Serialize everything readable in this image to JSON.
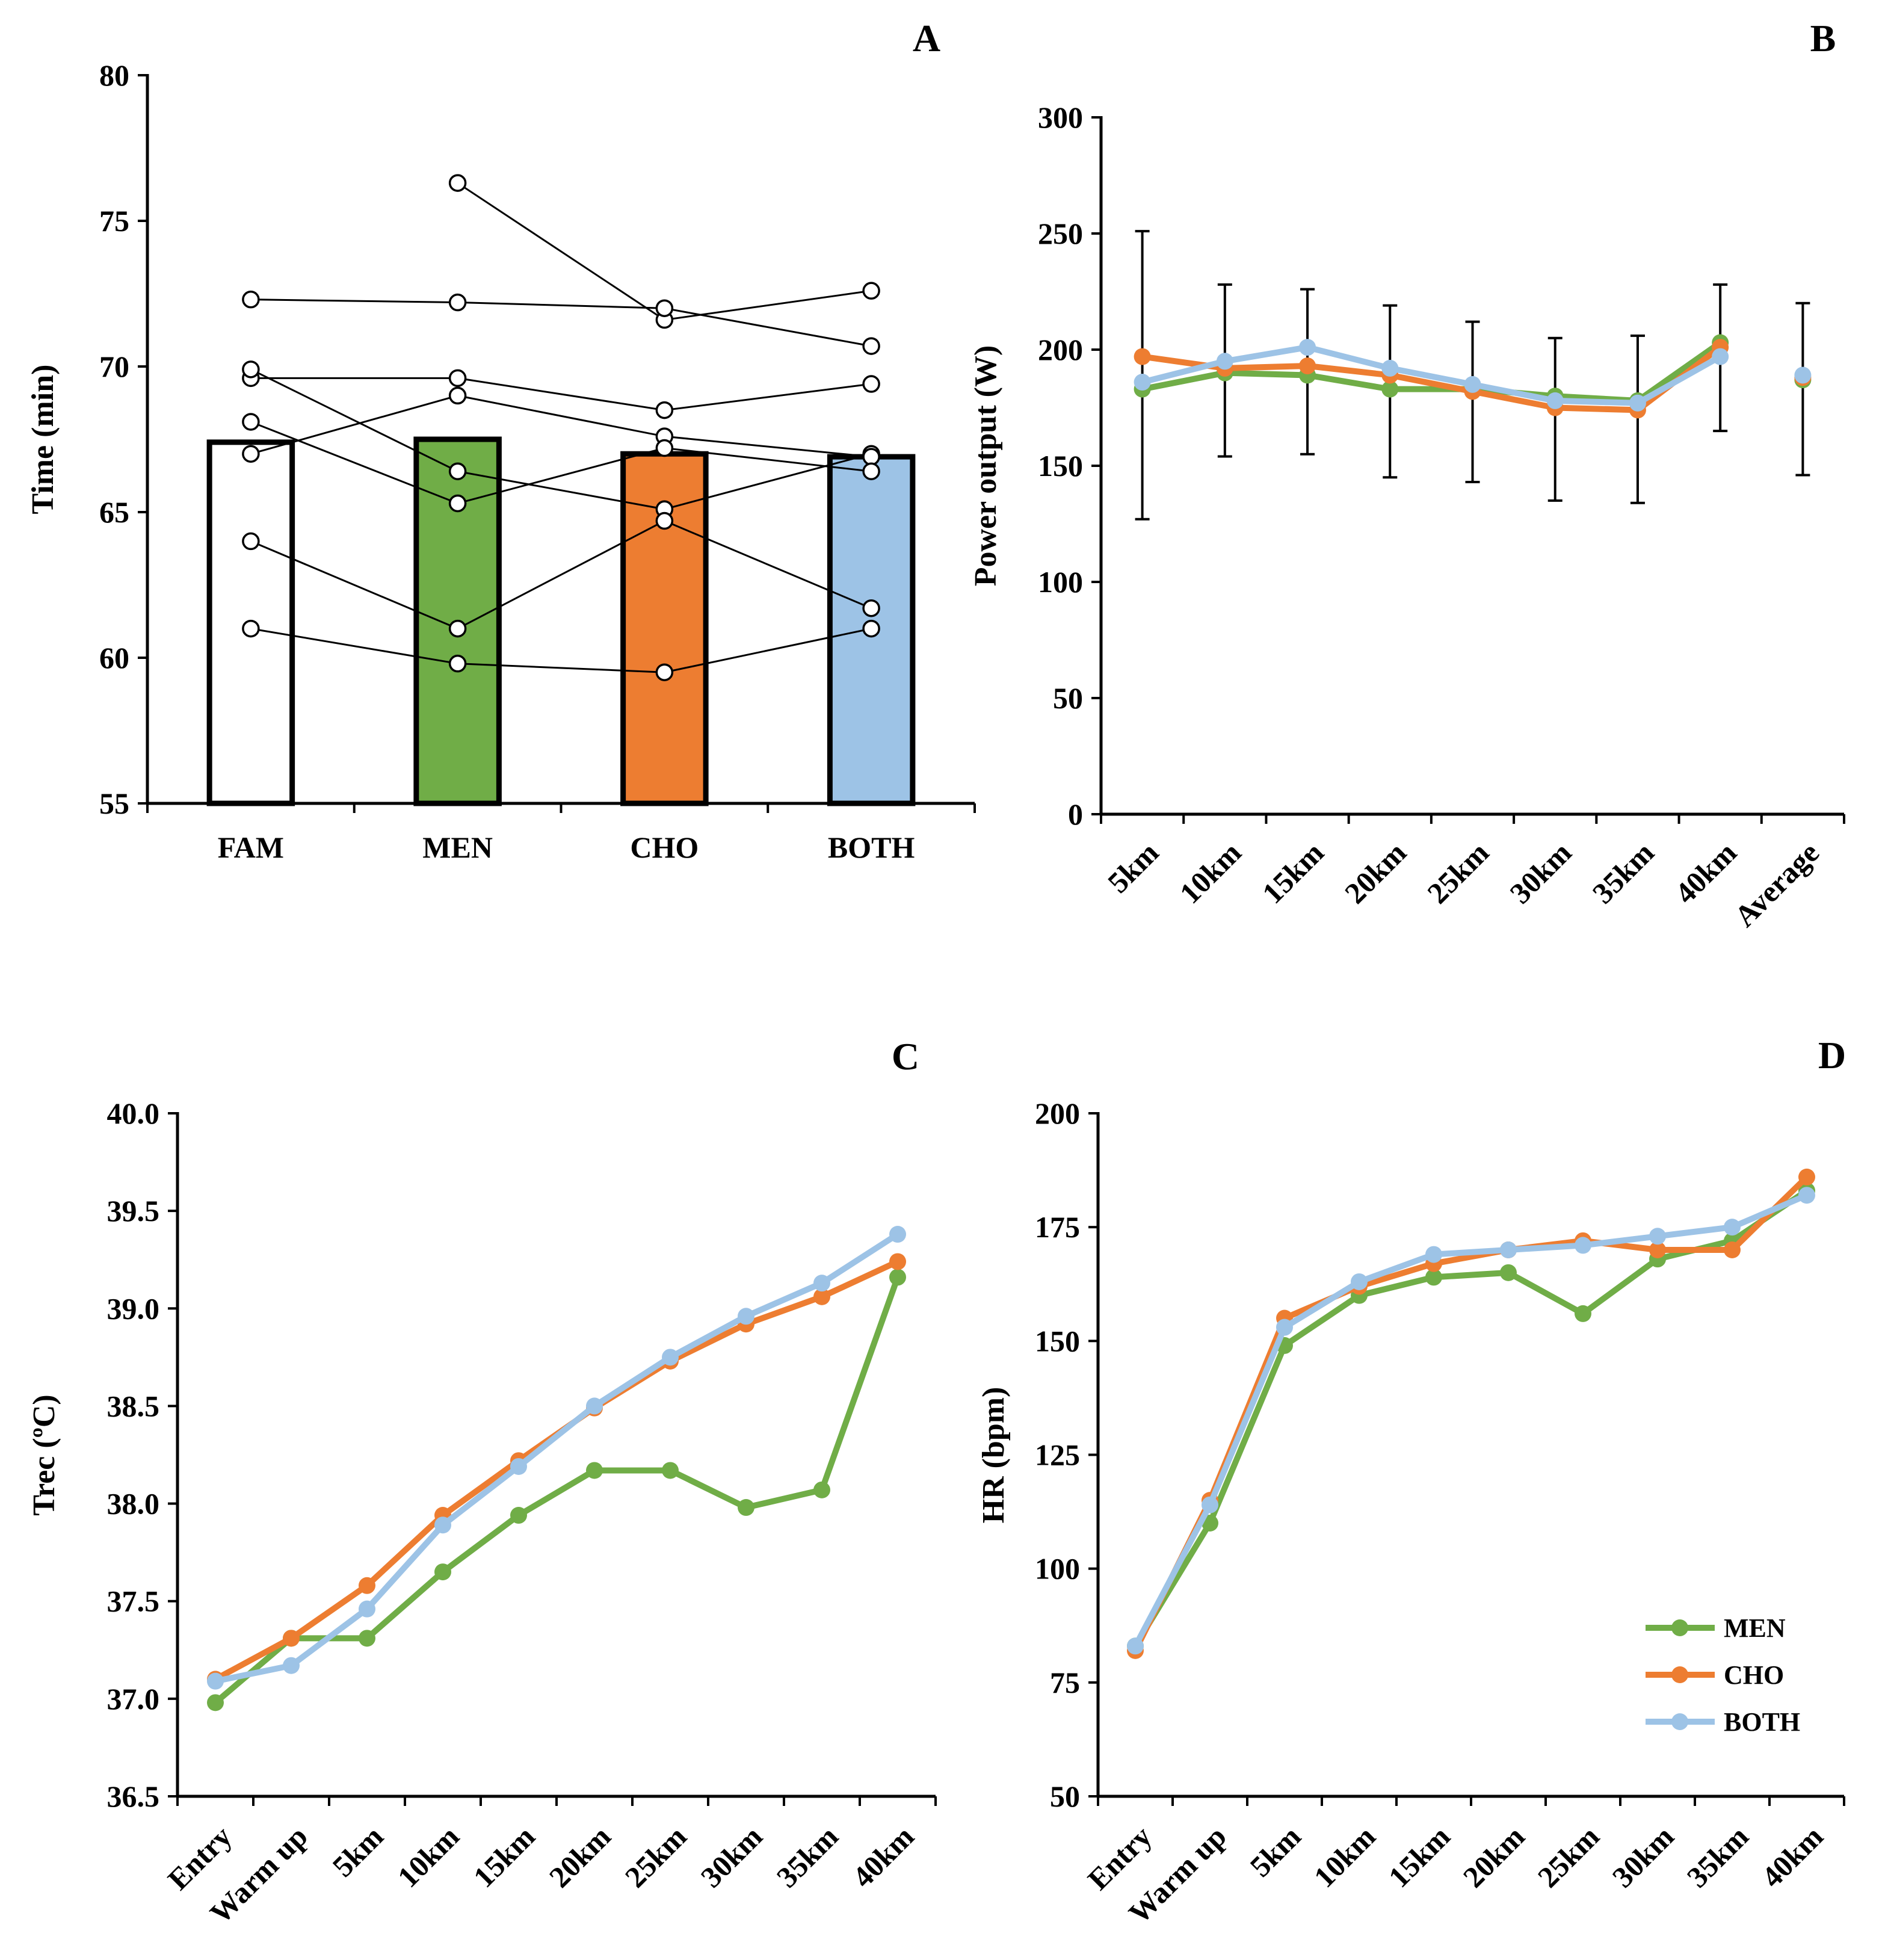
{
  "colors": {
    "MEN": "#70AD47",
    "CHO": "#ED7D31",
    "BOTH": "#9DC3E6",
    "FAM": "#FFFFFF",
    "axis": "#000000"
  },
  "chart_data": [
    {
      "id": "A",
      "panel_label": "A",
      "type": "bar",
      "title": "",
      "xlabel": "",
      "ylabel": "Time (min)",
      "ylim": [
        55,
        80
      ],
      "yticks": [
        55,
        60,
        65,
        70,
        75,
        80
      ],
      "categories": [
        "FAM",
        "MEN",
        "CHO",
        "BOTH"
      ],
      "values": [
        67.4,
        67.5,
        67.0,
        66.9
      ],
      "bar_colors": [
        "#FFFFFF",
        "#70AD47",
        "#ED7D31",
        "#9DC3E6"
      ],
      "individuals": [
        [
          null,
          76.3,
          71.6,
          72.6
        ],
        [
          72.3,
          72.2,
          72.0,
          70.7
        ],
        [
          69.6,
          69.6,
          68.5,
          69.4
        ],
        [
          69.9,
          66.4,
          65.1,
          67.0
        ],
        [
          67.0,
          69.0,
          67.6,
          66.9
        ],
        [
          68.1,
          65.3,
          67.2,
          66.4
        ],
        [
          64.0,
          61.0,
          64.7,
          61.7
        ],
        [
          61.0,
          59.8,
          59.5,
          61.0
        ]
      ]
    },
    {
      "id": "B",
      "panel_label": "B",
      "type": "line",
      "title": "",
      "xlabel": "",
      "ylabel": "Power output (W)",
      "ylim": [
        0,
        300
      ],
      "yticks": [
        0,
        50,
        100,
        150,
        200,
        250,
        300
      ],
      "categories": [
        "5km",
        "10km",
        "15km",
        "20km",
        "25km",
        "30km",
        "35km",
        "40km",
        "Average"
      ],
      "series": [
        {
          "name": "MEN",
          "values": [
            183,
            190,
            189,
            183,
            183,
            180,
            178,
            203,
            187
          ]
        },
        {
          "name": "CHO",
          "values": [
            197,
            192,
            193,
            189,
            182,
            175,
            174,
            201,
            188
          ]
        },
        {
          "name": "BOTH",
          "values": [
            186,
            195,
            201,
            192,
            185,
            178,
            177,
            197,
            189
          ]
        }
      ],
      "connect_last": false,
      "error": {
        "mean": [
          189,
          191,
          191,
          182,
          178,
          170,
          170,
          197,
          183
        ],
        "low": [
          127,
          154,
          155,
          145,
          143,
          135,
          134,
          165,
          146
        ],
        "high": [
          251,
          228,
          226,
          219,
          212,
          205,
          206,
          228,
          220
        ]
      }
    },
    {
      "id": "C",
      "panel_label": "C",
      "type": "line",
      "title": "",
      "xlabel": "",
      "ylabel": "Trec (ºC)",
      "ylim": [
        36.5,
        40.0
      ],
      "yticks": [
        36.5,
        37.0,
        37.5,
        38.0,
        38.5,
        39.0,
        39.5,
        40.0
      ],
      "ytick_labels": [
        "36.5",
        "37.0",
        "37.5",
        "38.0",
        "38.5",
        "39.0",
        "39.5",
        "40.0"
      ],
      "categories": [
        "Entry",
        "Warm up",
        "5km",
        "10km",
        "15km",
        "20km",
        "25km",
        "30km",
        "35km",
        "40km"
      ],
      "series": [
        {
          "name": "MEN",
          "values": [
            36.98,
            37.31,
            37.31,
            37.65,
            37.94,
            38.17,
            38.17,
            37.98,
            38.07,
            39.16
          ]
        },
        {
          "name": "CHO",
          "values": [
            37.1,
            37.31,
            37.58,
            37.94,
            38.22,
            38.49,
            38.73,
            38.92,
            39.06,
            39.24
          ]
        },
        {
          "name": "BOTH",
          "values": [
            37.09,
            37.17,
            37.46,
            37.89,
            38.19,
            38.5,
            38.75,
            38.96,
            39.13,
            39.38
          ]
        }
      ],
      "connect_last": true
    },
    {
      "id": "D",
      "panel_label": "D",
      "type": "line",
      "title": "",
      "xlabel": "",
      "ylabel": "HR (bpm)",
      "ylim": [
        50,
        200
      ],
      "yticks": [
        50,
        75,
        100,
        125,
        150,
        175,
        200
      ],
      "categories": [
        "Entry",
        "Warm up",
        "5km",
        "10km",
        "15km",
        "20km",
        "25km",
        "30km",
        "35km",
        "40km"
      ],
      "series": [
        {
          "name": "MEN",
          "values": [
            83,
            110,
            149,
            160,
            164,
            165,
            156,
            168,
            172,
            183
          ]
        },
        {
          "name": "CHO",
          "values": [
            82,
            115,
            155,
            162,
            167,
            170,
            172,
            170,
            170,
            186
          ]
        },
        {
          "name": "BOTH",
          "values": [
            83,
            114,
            153,
            163,
            169,
            170,
            171,
            173,
            175,
            182
          ]
        }
      ],
      "connect_last": true,
      "legend": {
        "position": "lower-right",
        "entries": [
          "MEN",
          "CHO",
          "BOTH"
        ]
      }
    }
  ]
}
